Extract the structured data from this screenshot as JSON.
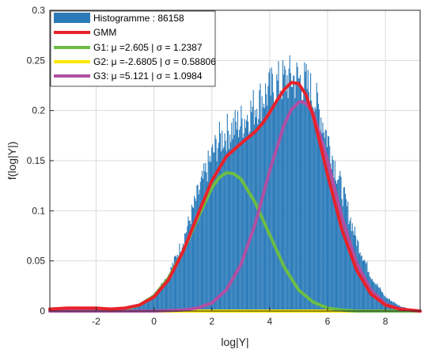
{
  "chart_data": {
    "type": "histogram",
    "xlabel": "log|Y|",
    "ylabel": "f(log|Y|)",
    "xlim": [
      -3.6,
      9.2
    ],
    "ylim": [
      0,
      0.3
    ],
    "xticks": [
      "-2",
      "0",
      "2",
      "4",
      "6",
      "8"
    ],
    "xtick_values": [
      -2,
      0,
      2,
      4,
      6,
      8
    ],
    "yticks": [
      "0",
      "0.05",
      "0.1",
      "0.15",
      "0.2",
      "0.25",
      "0.3"
    ],
    "ytick_values": [
      0,
      0.05,
      0.1,
      0.15,
      0.2,
      0.25,
      0.3
    ],
    "grid": true,
    "legend_position": "top-left",
    "histogram": {
      "label": "Histogramme : 86158",
      "color": "#2b7bba",
      "x": [
        -3.5,
        -3.0,
        -2.5,
        -2.0,
        -1.5,
        -1.0,
        -0.5,
        0.0,
        0.5,
        1.0,
        1.5,
        2.0,
        2.25,
        2.5,
        2.75,
        3.0,
        3.25,
        3.5,
        3.75,
        4.0,
        4.25,
        4.5,
        4.75,
        5.0,
        5.25,
        5.5,
        5.75,
        6.0,
        6.5,
        7.0,
        7.5,
        8.0,
        8.5,
        9.0
      ],
      "y": [
        0.001,
        0.002,
        0.002,
        0.002,
        0.002,
        0.003,
        0.007,
        0.016,
        0.036,
        0.07,
        0.115,
        0.155,
        0.17,
        0.178,
        0.183,
        0.188,
        0.196,
        0.205,
        0.213,
        0.22,
        0.225,
        0.23,
        0.232,
        0.231,
        0.226,
        0.215,
        0.197,
        0.173,
        0.12,
        0.071,
        0.035,
        0.014,
        0.005,
        0.001
      ]
    },
    "series": [
      {
        "name": "GMM",
        "color": "#e8222b",
        "x": [
          -3.6,
          -3.0,
          -2.5,
          -2.0,
          -1.5,
          -1.0,
          -0.5,
          0.0,
          0.5,
          1.0,
          1.5,
          2.0,
          2.5,
          3.0,
          3.25,
          3.5,
          3.75,
          4.0,
          4.25,
          4.5,
          4.75,
          5.0,
          5.25,
          5.5,
          5.75,
          6.0,
          6.5,
          7.0,
          7.5,
          8.0,
          8.5,
          9.2
        ],
        "y": [
          0.002,
          0.003,
          0.003,
          0.003,
          0.002,
          0.003,
          0.006,
          0.014,
          0.031,
          0.059,
          0.095,
          0.13,
          0.154,
          0.167,
          0.173,
          0.179,
          0.187,
          0.198,
          0.21,
          0.221,
          0.228,
          0.227,
          0.216,
          0.195,
          0.166,
          0.136,
          0.081,
          0.041,
          0.017,
          0.006,
          0.002,
          0.0
        ]
      },
      {
        "name": "G1: μ =2.605 |  σ = 1.2387",
        "color": "#6cbd45",
        "x": [
          -3.6,
          -3.0,
          -2.5,
          -2.0,
          -1.5,
          -1.0,
          -0.5,
          0.0,
          0.5,
          1.0,
          1.5,
          2.0,
          2.25,
          2.5,
          2.75,
          3.0,
          3.5,
          4.0,
          4.5,
          5.0,
          5.5,
          6.0,
          6.5,
          7.0,
          7.5,
          8.0,
          9.2
        ],
        "y": [
          0.0,
          0.0,
          0.0,
          0.0,
          0.001,
          0.002,
          0.006,
          0.015,
          0.033,
          0.059,
          0.092,
          0.123,
          0.133,
          0.138,
          0.137,
          0.132,
          0.108,
          0.076,
          0.044,
          0.021,
          0.009,
          0.003,
          0.001,
          0.0,
          0.0,
          0.0,
          0.0
        ]
      },
      {
        "name": "G2: μ =-2.6805 |  σ = 0.58806",
        "color": "#ffe800",
        "x": [
          -3.6,
          -3.3,
          -3.0,
          -2.7,
          -2.4,
          -2.1,
          -1.8,
          -1.5,
          -1.2,
          0.0,
          2.0,
          4.0,
          6.0,
          8.0,
          9.2
        ],
        "y": [
          0.001,
          0.002,
          0.002,
          0.003,
          0.002,
          0.002,
          0.001,
          0.001,
          0.0,
          0.0,
          0.0,
          0.0,
          0.0,
          0.0,
          0.0
        ]
      },
      {
        "name": "G3: μ =5.121 |  σ = 1.0984",
        "color": "#b04fa3",
        "x": [
          -3.6,
          0.0,
          1.0,
          1.5,
          2.0,
          2.5,
          3.0,
          3.5,
          4.0,
          4.5,
          4.75,
          5.0,
          5.121,
          5.25,
          5.5,
          6.0,
          6.5,
          7.0,
          7.5,
          8.0,
          8.5,
          9.2
        ],
        "y": [
          0.0,
          0.0,
          0.001,
          0.003,
          0.008,
          0.021,
          0.046,
          0.087,
          0.14,
          0.186,
          0.201,
          0.208,
          0.209,
          0.207,
          0.198,
          0.15,
          0.093,
          0.048,
          0.021,
          0.007,
          0.002,
          0.0
        ]
      }
    ]
  }
}
